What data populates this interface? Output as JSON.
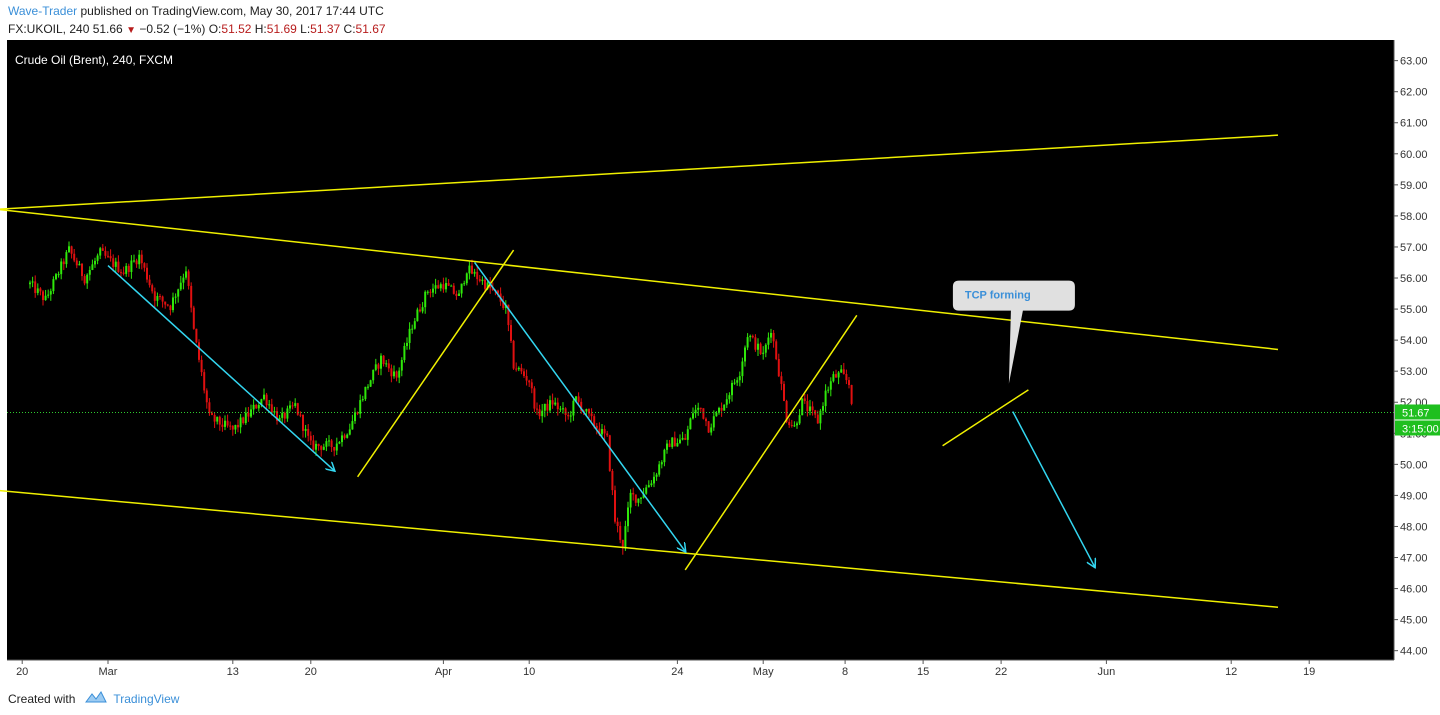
{
  "header": {
    "author": "Wave-Trader",
    "published_text": "published on TradingView.com, May 30, 2017 17:44 UTC",
    "symbol_line": "FX:UKOIL, 240  51.66",
    "change": "−0.52 (−1%)",
    "ohlc": {
      "o_label": "O:",
      "o": "51.52",
      "h_label": "H:",
      "h": "51.69",
      "l_label": "L:",
      "l": "51.37",
      "c_label": "C:",
      "c": "51.67"
    }
  },
  "footer": {
    "created_with": "Created with",
    "brand": "TradingView"
  },
  "colors": {
    "background": "#000000",
    "up": "#2fe80a",
    "down": "#e01010",
    "channel": "#f0f000",
    "arrow": "#33d6f0",
    "price_line": "#2ecc2e",
    "callout_bg": "#e0e0e0",
    "callout_text": "#3a8fd8"
  },
  "chart_data": {
    "type": "candlestick",
    "title": "Crude Oil (Brent), 240, FXCM",
    "ylim": [
      43.7,
      63.6
    ],
    "y_ticks": [
      "63.00",
      "62.00",
      "61.00",
      "60.00",
      "59.00",
      "58.00",
      "57.00",
      "56.00",
      "55.00",
      "54.00",
      "53.00",
      "52.00",
      "51.00",
      "50.00",
      "49.00",
      "48.00",
      "47.00",
      "46.00",
      "45.00",
      "44.00"
    ],
    "x_ticks": [
      "20",
      "Mar",
      "13",
      "20",
      "Apr",
      "10",
      "24",
      "May",
      "8",
      "15",
      "22",
      "Jun",
      "12",
      "19"
    ],
    "price_label": "51.67",
    "countdown_label": "3:15:00",
    "current_price": 51.67,
    "series_path": [
      {
        "d": 0,
        "v": 55.8
      },
      {
        "d": 2,
        "v": 55.3
      },
      {
        "d": 5,
        "v": 56.9
      },
      {
        "d": 7,
        "v": 56.0
      },
      {
        "d": 9,
        "v": 56.8
      },
      {
        "d": 12,
        "v": 56.2
      },
      {
        "d": 14,
        "v": 56.7
      },
      {
        "d": 16,
        "v": 55.4
      },
      {
        "d": 18,
        "v": 55.1
      },
      {
        "d": 20,
        "v": 56.3
      },
      {
        "d": 21,
        "v": 54.3
      },
      {
        "d": 23,
        "v": 51.5
      },
      {
        "d": 26,
        "v": 51.1
      },
      {
        "d": 28,
        "v": 51.6
      },
      {
        "d": 30,
        "v": 52.2
      },
      {
        "d": 32,
        "v": 51.4
      },
      {
        "d": 34,
        "v": 51.9
      },
      {
        "d": 36,
        "v": 50.6
      },
      {
        "d": 39,
        "v": 50.6
      },
      {
        "d": 41,
        "v": 51.2
      },
      {
        "d": 43,
        "v": 52.4
      },
      {
        "d": 45,
        "v": 53.4
      },
      {
        "d": 47,
        "v": 52.8
      },
      {
        "d": 49,
        "v": 54.5
      },
      {
        "d": 51,
        "v": 55.6
      },
      {
        "d": 53,
        "v": 55.8
      },
      {
        "d": 55,
        "v": 55.4
      },
      {
        "d": 56,
        "v": 56.3
      },
      {
        "d": 58,
        "v": 55.9
      },
      {
        "d": 60,
        "v": 55.4
      },
      {
        "d": 61,
        "v": 55.0
      },
      {
        "d": 62,
        "v": 53.2
      },
      {
        "d": 64,
        "v": 52.7
      },
      {
        "d": 65,
        "v": 51.6
      },
      {
        "d": 67,
        "v": 52.0
      },
      {
        "d": 69,
        "v": 51.5
      },
      {
        "d": 70,
        "v": 52.1
      },
      {
        "d": 72,
        "v": 51.4
      },
      {
        "d": 74,
        "v": 50.8
      },
      {
        "d": 75,
        "v": 48.2
      },
      {
        "d": 76,
        "v": 47.4
      },
      {
        "d": 77,
        "v": 49.0
      },
      {
        "d": 78,
        "v": 48.9
      },
      {
        "d": 80,
        "v": 49.6
      },
      {
        "d": 82,
        "v": 50.7
      },
      {
        "d": 84,
        "v": 50.8
      },
      {
        "d": 85,
        "v": 51.7
      },
      {
        "d": 86,
        "v": 51.8
      },
      {
        "d": 87,
        "v": 51.2
      },
      {
        "d": 89,
        "v": 52.0
      },
      {
        "d": 91,
        "v": 53.0
      },
      {
        "d": 92,
        "v": 54.2
      },
      {
        "d": 94,
        "v": 53.5
      },
      {
        "d": 95,
        "v": 54.4
      },
      {
        "d": 96,
        "v": 53.0
      },
      {
        "d": 97,
        "v": 51.5
      },
      {
        "d": 98,
        "v": 51.2
      },
      {
        "d": 99,
        "v": 52.0
      },
      {
        "d": 101,
        "v": 51.4
      },
      {
        "d": 102,
        "v": 52.3
      },
      {
        "d": 103,
        "v": 52.8
      },
      {
        "d": 104,
        "v": 52.9
      },
      {
        "d": 105,
        "v": 52.6
      },
      {
        "d": 105.6,
        "v": 51.67
      }
    ],
    "annotations": [
      {
        "type": "line",
        "color": "channel",
        "points": [
          [
            -19,
            58.0
          ],
          [
            160,
            60.6
          ]
        ]
      },
      {
        "type": "line",
        "color": "channel",
        "points": [
          [
            -11,
            58.4
          ],
          [
            160,
            53.7
          ]
        ]
      },
      {
        "type": "line",
        "color": "channel",
        "points": [
          [
            -19,
            49.5
          ],
          [
            160,
            45.4
          ]
        ]
      },
      {
        "type": "line",
        "color": "channel",
        "points": [
          [
            42,
            49.6
          ],
          [
            62,
            56.9
          ]
        ]
      },
      {
        "type": "line",
        "color": "channel",
        "points": [
          [
            84,
            46.6
          ],
          [
            106,
            54.8
          ]
        ]
      },
      {
        "type": "line",
        "color": "channel",
        "points": [
          [
            117,
            50.6
          ],
          [
            128,
            52.4
          ]
        ]
      },
      {
        "type": "arrow",
        "color": "arrow",
        "points": [
          [
            10,
            56.4
          ],
          [
            39,
            49.8
          ]
        ]
      },
      {
        "type": "arrow",
        "color": "arrow",
        "points": [
          [
            57,
            56.5
          ],
          [
            84,
            47.2
          ]
        ]
      },
      {
        "type": "arrow",
        "color": "arrow",
        "points": [
          [
            126,
            51.7
          ],
          [
            136.5,
            46.7
          ]
        ]
      },
      {
        "type": "callout",
        "text": "TCP forming",
        "anchor": [
          125.5,
          52.6
        ]
      }
    ]
  }
}
